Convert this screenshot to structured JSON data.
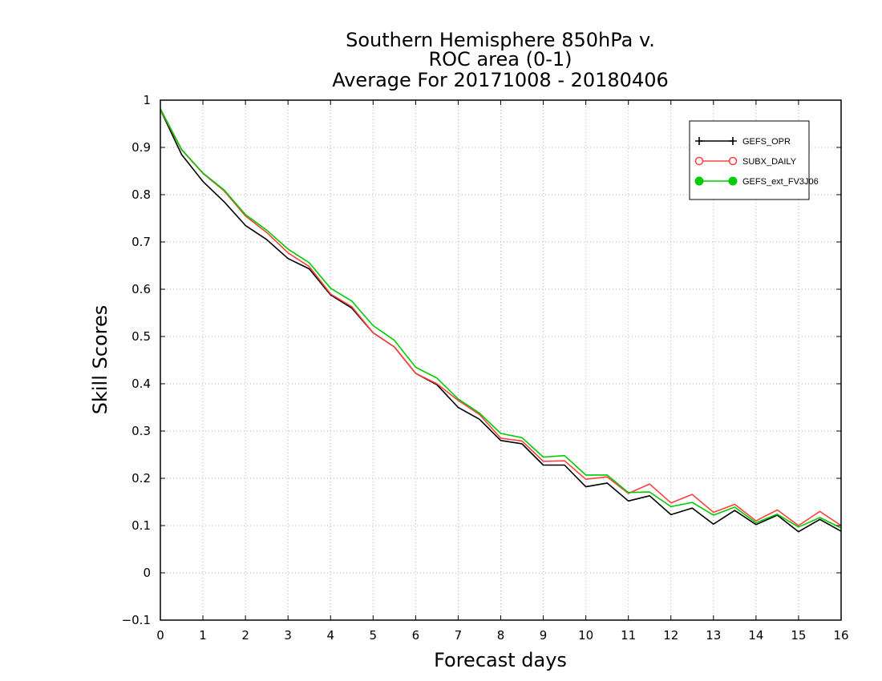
{
  "chart_data": {
    "type": "line",
    "title": [
      "Southern Hemisphere 850hPa v.",
      "ROC area (0-1)",
      "Average For 20171008 - 20180406"
    ],
    "xlabel": "Forecast days",
    "ylabel": "Skill Scores",
    "xlim": [
      0,
      16
    ],
    "ylim": [
      -0.1,
      1
    ],
    "x_ticks": [
      "0",
      "1",
      "2",
      "3",
      "4",
      "5",
      "6",
      "7",
      "8",
      "9",
      "10",
      "11",
      "12",
      "13",
      "14",
      "15",
      "16"
    ],
    "y_ticks": [
      "−0.1",
      "0",
      "0.1",
      "0.2",
      "0.3",
      "0.4",
      "0.5",
      "0.6",
      "0.7",
      "0.8",
      "0.9",
      "1"
    ],
    "grid": true,
    "legend_position": "top-right",
    "x": [
      0,
      0.5,
      1,
      1.5,
      2,
      2.5,
      3,
      3.5,
      4,
      4.5,
      5,
      5.5,
      6,
      6.5,
      7,
      7.5,
      8,
      8.5,
      9,
      9.5,
      10,
      10.5,
      11,
      11.5,
      12,
      12.5,
      13,
      13.5,
      14,
      14.5,
      15,
      15.5,
      16
    ],
    "series": [
      {
        "name": "GEFS_OPR",
        "color": "#000000",
        "marker": "plus",
        "values": [
          0.98,
          0.885,
          0.828,
          0.785,
          0.735,
          0.705,
          0.665,
          0.643,
          0.588,
          0.56,
          0.508,
          0.478,
          0.422,
          0.398,
          0.35,
          0.325,
          0.28,
          0.273,
          0.228,
          0.228,
          0.182,
          0.19,
          0.152,
          0.163,
          0.123,
          0.137,
          0.103,
          0.132,
          0.102,
          0.122,
          0.087,
          0.113,
          0.088
        ]
      },
      {
        "name": "SUBX_DAILY",
        "color": "#ff4040",
        "marker": "circle-open",
        "values": [
          0.98,
          0.895,
          0.845,
          0.808,
          0.755,
          0.72,
          0.677,
          0.648,
          0.59,
          0.563,
          0.508,
          0.478,
          0.422,
          0.4,
          0.365,
          0.335,
          0.285,
          0.279,
          0.236,
          0.237,
          0.198,
          0.203,
          0.168,
          0.188,
          0.148,
          0.166,
          0.128,
          0.145,
          0.11,
          0.133,
          0.1,
          0.13,
          0.1
        ]
      },
      {
        "name": "GEFS_ext_FV3J06",
        "color": "#00cc00",
        "marker": "circle-filled",
        "values": [
          0.982,
          0.896,
          0.846,
          0.81,
          0.758,
          0.725,
          0.685,
          0.656,
          0.602,
          0.575,
          0.523,
          0.492,
          0.435,
          0.412,
          0.368,
          0.338,
          0.295,
          0.286,
          0.245,
          0.248,
          0.207,
          0.207,
          0.17,
          0.171,
          0.14,
          0.149,
          0.122,
          0.139,
          0.106,
          0.124,
          0.097,
          0.117,
          0.095
        ]
      }
    ]
  }
}
